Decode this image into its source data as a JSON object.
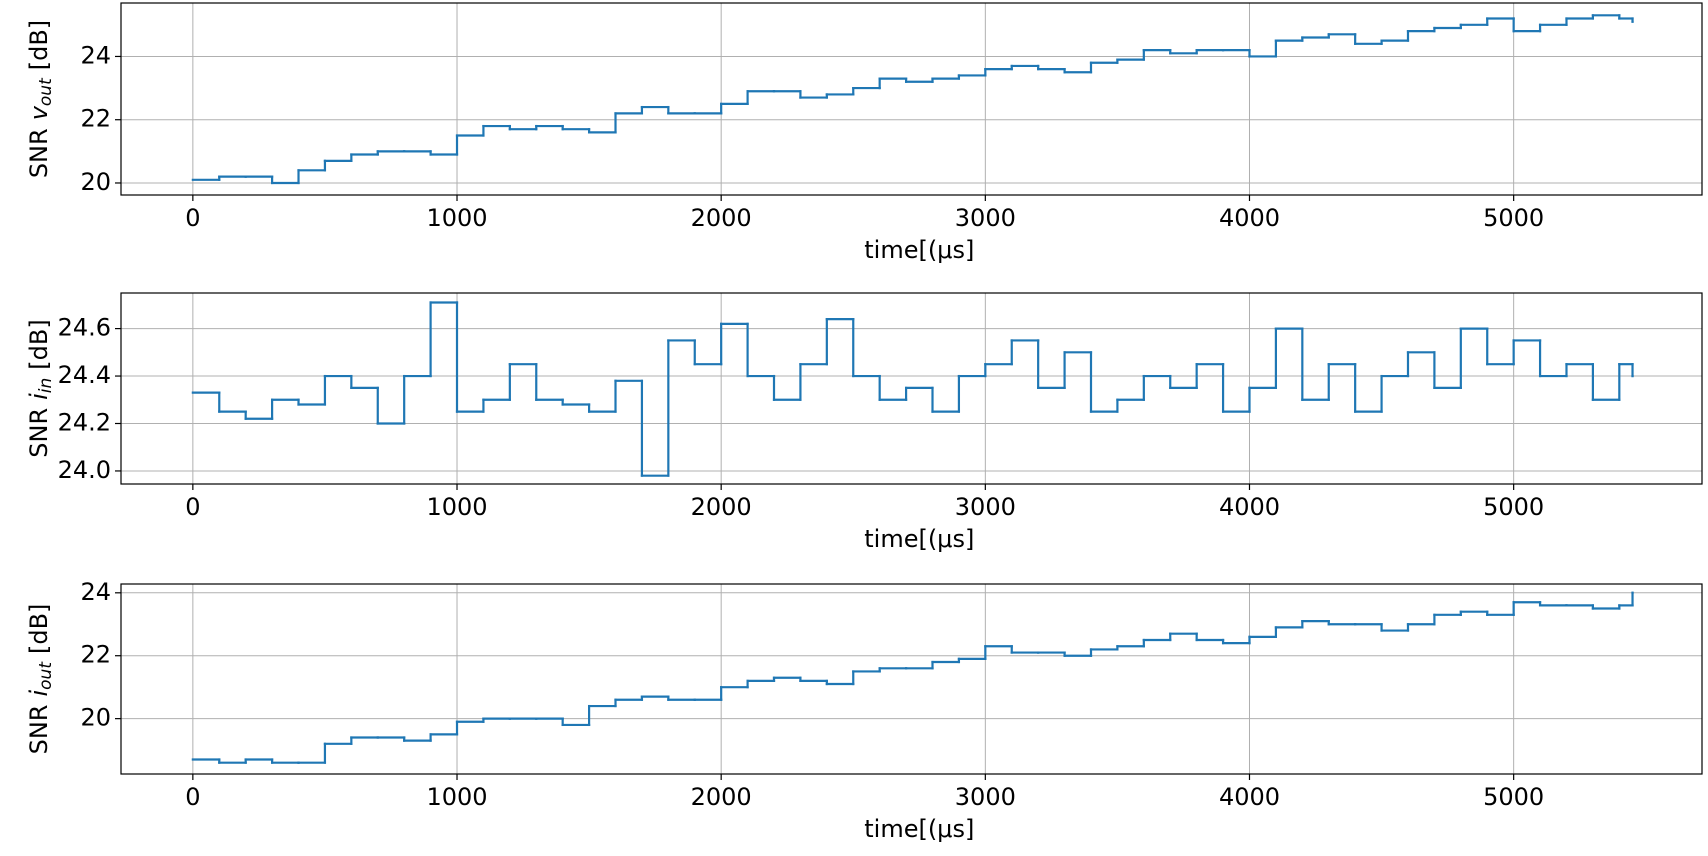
{
  "chart_data": [
    {
      "type": "step",
      "ylabel": {
        "text": "SNR",
        "var": "v",
        "sub": "out",
        "unit": "[dB]"
      },
      "xlabel": "time[(μs]",
      "color": "#1f77b4",
      "grid": true,
      "xlim": [
        -272,
        5713
      ],
      "xticks": [
        0,
        1000,
        2000,
        3000,
        4000,
        5000
      ],
      "ylim": [
        19.62,
        25.69
      ],
      "yticks": [
        20,
        22,
        24
      ],
      "x": [
        0,
        100,
        200,
        300,
        400,
        500,
        600,
        700,
        800,
        900,
        1000,
        1100,
        1200,
        1300,
        1400,
        1500,
        1600,
        1700,
        1800,
        1900,
        2000,
        2100,
        2200,
        2300,
        2400,
        2500,
        2600,
        2700,
        2800,
        2900,
        3000,
        3100,
        3200,
        3300,
        3400,
        3500,
        3600,
        3700,
        3800,
        3900,
        4000,
        4100,
        4200,
        4300,
        4400,
        4500,
        4600,
        4700,
        4800,
        4900,
        5000,
        5100,
        5200,
        5300,
        5400,
        5450
      ],
      "values": [
        20.1,
        20.2,
        20.2,
        20.0,
        20.4,
        20.7,
        20.9,
        21.0,
        21.0,
        20.9,
        21.5,
        21.8,
        21.7,
        21.8,
        21.7,
        21.6,
        22.2,
        22.4,
        22.2,
        22.2,
        22.5,
        22.9,
        22.9,
        22.7,
        22.8,
        23.0,
        23.3,
        23.2,
        23.3,
        23.4,
        23.6,
        23.7,
        23.6,
        23.5,
        23.8,
        23.9,
        24.2,
        24.1,
        24.2,
        24.2,
        24.0,
        24.5,
        24.6,
        24.7,
        24.4,
        24.5,
        24.8,
        24.9,
        25.0,
        25.2,
        24.8,
        25.0,
        25.2,
        25.3,
        25.2,
        25.1
      ]
    },
    {
      "type": "step",
      "ylabel": {
        "text": "SNR",
        "var": "i",
        "sub": "in",
        "unit": "[dB]"
      },
      "xlabel": "time[(μs]",
      "color": "#1f77b4",
      "grid": true,
      "xlim": [
        -272,
        5713
      ],
      "xticks": [
        0,
        1000,
        2000,
        3000,
        4000,
        5000
      ],
      "ylim": [
        23.945,
        24.75
      ],
      "yticks": [
        {
          "value": 24,
          "label": "24.0"
        },
        24.2,
        24.4,
        24.6
      ],
      "x": [
        0,
        100,
        200,
        300,
        400,
        500,
        600,
        700,
        800,
        900,
        1000,
        1100,
        1200,
        1300,
        1400,
        1500,
        1600,
        1700,
        1800,
        1900,
        2000,
        2100,
        2200,
        2300,
        2400,
        2500,
        2600,
        2700,
        2800,
        2900,
        3000,
        3100,
        3200,
        3300,
        3400,
        3500,
        3600,
        3700,
        3800,
        3900,
        4000,
        4100,
        4200,
        4300,
        4400,
        4500,
        4600,
        4700,
        4800,
        4900,
        5000,
        5100,
        5200,
        5300,
        5400,
        5450
      ],
      "values": [
        24.33,
        24.25,
        24.22,
        24.3,
        24.28,
        24.4,
        24.35,
        24.2,
        24.4,
        24.71,
        24.25,
        24.3,
        24.45,
        24.3,
        24.28,
        24.25,
        24.38,
        23.98,
        24.55,
        24.45,
        24.62,
        24.4,
        24.3,
        24.45,
        24.64,
        24.4,
        24.3,
        24.35,
        24.25,
        24.4,
        24.45,
        24.55,
        24.35,
        24.5,
        24.25,
        24.3,
        24.4,
        24.35,
        24.45,
        24.25,
        24.35,
        24.6,
        24.3,
        24.45,
        24.25,
        24.4,
        24.5,
        24.35,
        24.6,
        24.45,
        24.55,
        24.4,
        24.45,
        24.3,
        24.45,
        24.4
      ]
    },
    {
      "type": "step",
      "ylabel": {
        "text": "SNR",
        "var": "i",
        "sub": "out",
        "unit": "[dB]"
      },
      "xlabel": "time[(μs]",
      "color": "#1f77b4",
      "grid": true,
      "xlim": [
        -272,
        5713
      ],
      "xticks": [
        0,
        1000,
        2000,
        3000,
        4000,
        5000
      ],
      "ylim": [
        18.24,
        24.28
      ],
      "yticks": [
        20,
        22,
        24
      ],
      "x": [
        0,
        100,
        200,
        300,
        400,
        500,
        600,
        700,
        800,
        900,
        1000,
        1100,
        1200,
        1300,
        1400,
        1500,
        1600,
        1700,
        1800,
        1900,
        2000,
        2100,
        2200,
        2300,
        2400,
        2500,
        2600,
        2700,
        2800,
        2900,
        3000,
        3100,
        3200,
        3300,
        3400,
        3500,
        3600,
        3700,
        3800,
        3900,
        4000,
        4100,
        4200,
        4300,
        4400,
        4500,
        4600,
        4700,
        4800,
        4900,
        5000,
        5100,
        5200,
        5300,
        5400,
        5450
      ],
      "values": [
        18.7,
        18.6,
        18.7,
        18.6,
        18.6,
        19.2,
        19.4,
        19.4,
        19.3,
        19.5,
        19.9,
        20.0,
        20.0,
        20.0,
        19.8,
        20.4,
        20.6,
        20.7,
        20.6,
        20.6,
        21.0,
        21.2,
        21.3,
        21.2,
        21.1,
        21.5,
        21.6,
        21.6,
        21.8,
        21.9,
        22.3,
        22.1,
        22.1,
        22.0,
        22.2,
        22.3,
        22.5,
        22.7,
        22.5,
        22.4,
        22.6,
        22.9,
        23.1,
        23.0,
        23.0,
        22.8,
        23.0,
        23.3,
        23.4,
        23.3,
        23.7,
        23.6,
        23.6,
        23.5,
        23.6,
        24.0
      ]
    }
  ]
}
